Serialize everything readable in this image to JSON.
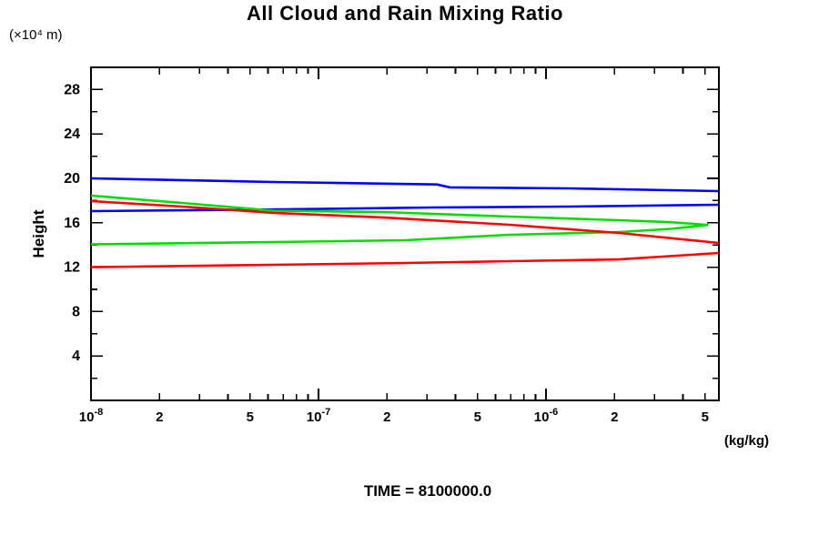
{
  "header": {
    "title": "All Cloud and Rain Mixing Ratio",
    "y_axis_units": "(×10⁴  m)"
  },
  "labels": {
    "ylabel": "Height",
    "x_units": "(kg/kg)",
    "time": "TIME = 8100000.0"
  },
  "chart_data": {
    "type": "line",
    "title": "All Cloud and Rain Mixing Ratio",
    "xlabel": "(kg/kg)",
    "ylabel": "Height (×10⁴ m)",
    "x_scale": "log10",
    "x_domain_log10": [
      -8,
      -5.24
    ],
    "y_domain": [
      0,
      30
    ],
    "grid": false,
    "frame": "box with inward ticks on all four sides",
    "x_major_ticks": [
      {
        "log10": -8.0,
        "text": "10",
        "exp": "-8"
      },
      {
        "log10": -7.699,
        "text": "2"
      },
      {
        "log10": -7.301,
        "text": "5"
      },
      {
        "log10": -7.0,
        "text": "10",
        "exp": "-7"
      },
      {
        "log10": -6.699,
        "text": "2"
      },
      {
        "log10": -6.301,
        "text": "5"
      },
      {
        "log10": -6.0,
        "text": "10",
        "exp": "-6"
      },
      {
        "log10": -5.699,
        "text": "2"
      },
      {
        "log10": -5.301,
        "text": "5"
      }
    ],
    "x_minor_ticks_log10": [
      -7.523,
      -7.398,
      -7.222,
      -7.155,
      -7.097,
      -7.046,
      -6.523,
      -6.398,
      -6.222,
      -6.155,
      -6.097,
      -6.046,
      -5.523,
      -5.398
    ],
    "y_major_ticks": [
      4,
      8,
      12,
      16,
      20,
      24,
      28
    ],
    "y_minor_ticks": [
      2,
      6,
      10,
      14,
      18,
      22,
      26,
      30
    ],
    "colors": {
      "blue": "#0000ff",
      "green": "#00dd00",
      "red": "#ff0000",
      "frame": "#000000"
    },
    "series": [
      {
        "name": "blue-upper-branch",
        "color": "#0000ff",
        "points_log10x_height": [
          [
            -8,
            20.0
          ],
          [
            -7.2,
            19.67
          ],
          [
            -6.48,
            19.45
          ],
          [
            -6.42,
            19.18
          ],
          [
            -5.9,
            19.1
          ],
          [
            -5.24,
            18.85
          ]
        ]
      },
      {
        "name": "blue-lower-branch",
        "color": "#0000ff",
        "points_log10x_height": [
          [
            -8,
            17.05
          ],
          [
            -7.2,
            17.2
          ],
          [
            -6.5,
            17.38
          ],
          [
            -5.9,
            17.46
          ],
          [
            -5.24,
            17.62
          ]
        ]
      },
      {
        "name": "green-curve",
        "color": "#00dd00",
        "points_log10x_height": [
          [
            -8,
            18.44
          ],
          [
            -7.6,
            17.79
          ],
          [
            -7.2,
            17.09
          ],
          [
            -6.72,
            16.97
          ],
          [
            -6.16,
            16.56
          ],
          [
            -5.68,
            16.23
          ],
          [
            -5.45,
            16.05
          ],
          [
            -5.29,
            15.8
          ],
          [
            -5.45,
            15.45
          ],
          [
            -5.68,
            15.16
          ],
          [
            -6.16,
            14.92
          ],
          [
            -6.62,
            14.43
          ],
          [
            -7.2,
            14.26
          ],
          [
            -8,
            14.06
          ]
        ]
      },
      {
        "name": "red-upper-branch",
        "color": "#ff0000",
        "points_log10x_height": [
          [
            -8,
            17.95
          ],
          [
            -7.6,
            17.46
          ],
          [
            -7.2,
            16.89
          ],
          [
            -6.72,
            16.48
          ],
          [
            -6.16,
            15.82
          ],
          [
            -5.68,
            15.08
          ],
          [
            -5.24,
            14.18
          ]
        ]
      },
      {
        "name": "red-lower-branch",
        "color": "#ff0000",
        "points_log10x_height": [
          [
            -5.24,
            13.28
          ],
          [
            -5.68,
            12.7
          ],
          [
            -6.16,
            12.54
          ],
          [
            -6.62,
            12.38
          ],
          [
            -7.2,
            12.21
          ],
          [
            -8,
            12.0
          ]
        ]
      }
    ],
    "time_annotation": "TIME = 8100000.0"
  }
}
